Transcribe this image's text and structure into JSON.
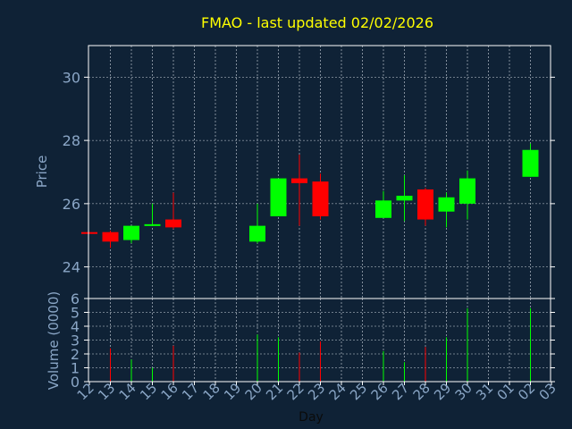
{
  "chart_data": {
    "type": "candlestick",
    "title": "FMAO - last updated 02/02/2026",
    "xlabel": "Day",
    "price_ylabel": "Price",
    "volume_ylabel": "Volume (0000)",
    "x_tick_labels": [
      "12",
      "13",
      "14",
      "15",
      "16",
      "17",
      "18",
      "19",
      "20",
      "21",
      "22",
      "23",
      "24",
      "25",
      "26",
      "27",
      "28",
      "29",
      "30",
      "31",
      "01",
      "02",
      "03"
    ],
    "price_ticks": [
      "24",
      "26",
      "28",
      "30"
    ],
    "price_ylim": [
      23.0,
      31.0
    ],
    "volume_ticks": [
      "0",
      "1",
      "2",
      "3",
      "4",
      "5",
      "6"
    ],
    "volume_ylim": [
      0,
      6
    ],
    "grid": true,
    "colors": {
      "background": "#0f2236",
      "axis": "#ffffff",
      "grid": "#d0d8e0",
      "title": "#ffff00",
      "label": "#8aa6c6",
      "tick": "#8aa6c6",
      "up": "#00ff00",
      "down": "#ff0000"
    },
    "candles": [
      {
        "day": "12",
        "open": 25.1,
        "high": 25.1,
        "low": 25.05,
        "close": 25.05,
        "volume": 0.0
      },
      {
        "day": "13",
        "open": 25.1,
        "high": 25.15,
        "low": 24.6,
        "close": 24.8,
        "volume": 2.4
      },
      {
        "day": "14",
        "open": 24.85,
        "high": 25.3,
        "low": 24.75,
        "close": 25.3,
        "volume": 1.6
      },
      {
        "day": "15",
        "open": 25.3,
        "high": 26.0,
        "low": 25.3,
        "close": 25.35,
        "volume": 1.0
      },
      {
        "day": "16",
        "open": 25.5,
        "high": 26.35,
        "low": 25.2,
        "close": 25.25,
        "volume": 2.6
      },
      {
        "day": "20",
        "open": 24.8,
        "high": 26.0,
        "low": 24.75,
        "close": 25.3,
        "volume": 3.4
      },
      {
        "day": "21",
        "open": 25.6,
        "high": 26.8,
        "low": 25.6,
        "close": 26.8,
        "volume": 3.2
      },
      {
        "day": "22",
        "open": 26.8,
        "high": 27.55,
        "low": 25.3,
        "close": 26.65,
        "volume": 2.1
      },
      {
        "day": "23",
        "open": 26.7,
        "high": 26.95,
        "low": 25.5,
        "close": 25.6,
        "volume": 2.9
      },
      {
        "day": "26",
        "open": 25.55,
        "high": 26.4,
        "low": 25.55,
        "close": 26.1,
        "volume": 2.2
      },
      {
        "day": "27",
        "open": 26.1,
        "high": 26.9,
        "low": 25.45,
        "close": 26.25,
        "volume": 1.4
      },
      {
        "day": "28",
        "open": 26.45,
        "high": 26.5,
        "low": 25.3,
        "close": 25.5,
        "volume": 2.5
      },
      {
        "day": "29",
        "open": 25.75,
        "high": 26.35,
        "low": 25.25,
        "close": 26.2,
        "volume": 3.2
      },
      {
        "day": "30",
        "open": 26.0,
        "high": 27.05,
        "low": 25.5,
        "close": 26.8,
        "volume": 5.3
      },
      {
        "day": "02",
        "open": 26.85,
        "high": 27.9,
        "low": 26.85,
        "close": 27.7,
        "volume": 5.3
      }
    ]
  }
}
